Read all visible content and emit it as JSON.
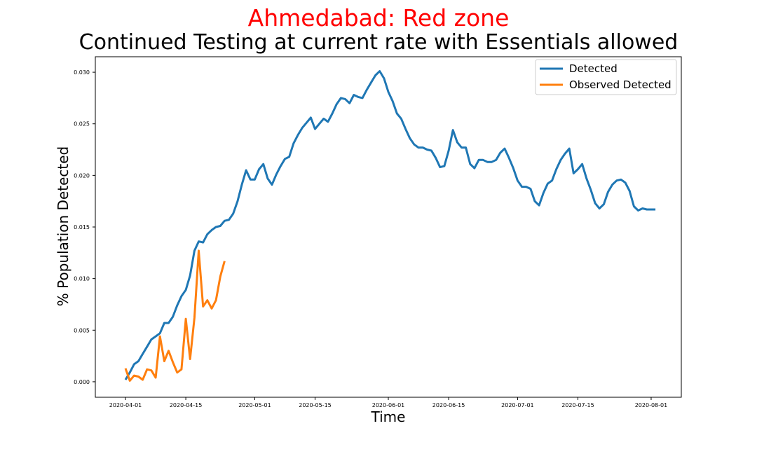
{
  "title": "Ahmedabad: Red zone",
  "subtitle": "Continued Testing at current rate with Essentials allowed",
  "title_color": "#ff0000",
  "chart_data": {
    "type": "line",
    "xlabel": "Time",
    "ylabel": "% Population Detected",
    "x_tick_labels": [
      "2020-04-01",
      "2020-04-15",
      "2020-05-01",
      "2020-05-15",
      "2020-06-01",
      "2020-06-15",
      "2020-07-01",
      "2020-07-15",
      "2020-08-01"
    ],
    "y_tick_labels": [
      "0.000",
      "0.005",
      "0.010",
      "0.015",
      "0.020",
      "0.025",
      "0.030"
    ],
    "y_ticks": [
      0,
      0.005,
      0.01,
      0.015,
      0.02,
      0.025,
      0.03
    ],
    "ylim": [
      -0.0015,
      0.0315
    ],
    "xlim": [
      "2020-03-25",
      "2020-08-08"
    ],
    "grid": false,
    "legend_position": "top-right",
    "series": [
      {
        "name": "Detected",
        "color": "#1f77b4",
        "x": [
          "2020-04-01",
          "2020-04-02",
          "2020-04-03",
          "2020-04-04",
          "2020-04-05",
          "2020-04-06",
          "2020-04-07",
          "2020-04-08",
          "2020-04-09",
          "2020-04-10",
          "2020-04-11",
          "2020-04-12",
          "2020-04-13",
          "2020-04-14",
          "2020-04-15",
          "2020-04-16",
          "2020-04-17",
          "2020-04-18",
          "2020-04-19",
          "2020-04-20",
          "2020-04-21",
          "2020-04-22",
          "2020-04-23",
          "2020-04-24",
          "2020-04-25",
          "2020-04-26",
          "2020-04-27",
          "2020-04-28",
          "2020-04-29",
          "2020-04-30",
          "2020-05-01",
          "2020-05-02",
          "2020-05-03",
          "2020-05-04",
          "2020-05-05",
          "2020-05-06",
          "2020-05-07",
          "2020-05-08",
          "2020-05-09",
          "2020-05-10",
          "2020-05-11",
          "2020-05-12",
          "2020-05-13",
          "2020-05-14",
          "2020-05-15",
          "2020-05-16",
          "2020-05-17",
          "2020-05-18",
          "2020-05-19",
          "2020-05-20",
          "2020-05-21",
          "2020-05-22",
          "2020-05-23",
          "2020-05-24",
          "2020-05-25",
          "2020-05-26",
          "2020-05-27",
          "2020-05-28",
          "2020-05-29",
          "2020-05-30",
          "2020-05-31",
          "2020-06-01",
          "2020-06-02",
          "2020-06-03",
          "2020-06-04",
          "2020-06-05",
          "2020-06-06",
          "2020-06-07",
          "2020-06-08",
          "2020-06-09",
          "2020-06-10",
          "2020-06-11",
          "2020-06-12",
          "2020-06-13",
          "2020-06-14",
          "2020-06-15",
          "2020-06-16",
          "2020-06-17",
          "2020-06-18",
          "2020-06-19",
          "2020-06-20",
          "2020-06-21",
          "2020-06-22",
          "2020-06-23",
          "2020-06-24",
          "2020-06-25",
          "2020-06-26",
          "2020-06-27",
          "2020-06-28",
          "2020-06-29",
          "2020-06-30",
          "2020-07-01",
          "2020-07-02",
          "2020-07-03",
          "2020-07-04",
          "2020-07-05",
          "2020-07-06",
          "2020-07-07",
          "2020-07-08",
          "2020-07-09",
          "2020-07-10",
          "2020-07-11",
          "2020-07-12",
          "2020-07-13",
          "2020-07-14",
          "2020-07-15",
          "2020-07-16",
          "2020-07-17",
          "2020-07-18",
          "2020-07-19",
          "2020-07-20",
          "2020-07-21",
          "2020-07-22",
          "2020-07-23",
          "2020-07-24",
          "2020-07-25",
          "2020-07-26",
          "2020-07-27",
          "2020-07-28",
          "2020-07-29",
          "2020-07-30",
          "2020-07-31",
          "2020-08-01",
          "2020-08-02"
        ],
        "values": [
          0.0002,
          0.0009,
          0.0017,
          0.002,
          0.0027,
          0.0034,
          0.0041,
          0.0044,
          0.0047,
          0.0057,
          0.0057,
          0.0063,
          0.0074,
          0.0083,
          0.0089,
          0.0103,
          0.0127,
          0.0136,
          0.0135,
          0.0143,
          0.0147,
          0.015,
          0.0151,
          0.0156,
          0.0157,
          0.0163,
          0.0175,
          0.0191,
          0.0205,
          0.0196,
          0.0196,
          0.0206,
          0.0211,
          0.0197,
          0.0191,
          0.0201,
          0.0209,
          0.0216,
          0.0218,
          0.0231,
          0.0239,
          0.0246,
          0.0251,
          0.0256,
          0.0245,
          0.025,
          0.0255,
          0.0252,
          0.026,
          0.0269,
          0.0275,
          0.0274,
          0.027,
          0.0278,
          0.0276,
          0.0275,
          0.0283,
          0.029,
          0.0297,
          0.0301,
          0.0294,
          0.0281,
          0.0272,
          0.026,
          0.0255,
          0.0245,
          0.0236,
          0.023,
          0.0227,
          0.0227,
          0.0225,
          0.0224,
          0.0217,
          0.0208,
          0.0209,
          0.0224,
          0.0244,
          0.0232,
          0.0227,
          0.0227,
          0.0211,
          0.0207,
          0.0215,
          0.0215,
          0.0213,
          0.0213,
          0.0215,
          0.0222,
          0.0226,
          0.0217,
          0.0207,
          0.0195,
          0.0189,
          0.0189,
          0.0187,
          0.0175,
          0.0171,
          0.0183,
          0.0192,
          0.0195,
          0.0206,
          0.0215,
          0.0221,
          0.0226,
          0.0202,
          0.0206,
          0.0211,
          0.0197,
          0.0186,
          0.0173,
          0.0168,
          0.0172,
          0.0184,
          0.0191,
          0.0195,
          0.0196,
          0.0193,
          0.0185,
          0.017,
          0.0166,
          0.0168,
          0.0167,
          0.0167,
          0.0167
        ]
      },
      {
        "name": "Observed Detected",
        "color": "#ff7f0e",
        "x": [
          "2020-04-01",
          "2020-04-02",
          "2020-04-03",
          "2020-04-04",
          "2020-04-05",
          "2020-04-06",
          "2020-04-07",
          "2020-04-08",
          "2020-04-09",
          "2020-04-10",
          "2020-04-11",
          "2020-04-12",
          "2020-04-13",
          "2020-04-14",
          "2020-04-15",
          "2020-04-16",
          "2020-04-17",
          "2020-04-18",
          "2020-04-19",
          "2020-04-20",
          "2020-04-21",
          "2020-04-22",
          "2020-04-23",
          "2020-04-24"
        ],
        "values": [
          0.0013,
          0.0001,
          0.0006,
          0.0005,
          0.0002,
          0.0012,
          0.0011,
          0.0004,
          0.0044,
          0.002,
          0.003,
          0.0019,
          0.0009,
          0.0012,
          0.0061,
          0.0022,
          0.0062,
          0.0127,
          0.0073,
          0.0079,
          0.0071,
          0.0079,
          0.0102,
          0.0117
        ]
      }
    ]
  }
}
